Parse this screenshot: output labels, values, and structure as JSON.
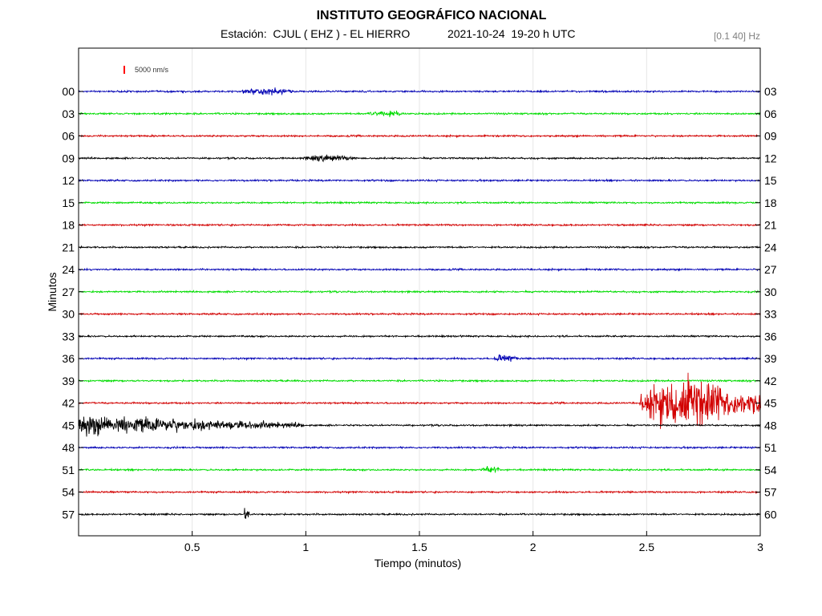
{
  "header": {
    "title": "INSTITUTO GEOGRÁFICO NACIONAL",
    "station_label": "Estación:",
    "station": "CJUL ( EHZ ) - EL HIERRO",
    "date": "2021-10-24",
    "time_range": "19-20 h UTC",
    "filter": "[0.1 40] Hz"
  },
  "scale_bar": {
    "label": "5000 nm/s",
    "color": "#ff0000"
  },
  "chart_data": {
    "type": "line",
    "xlabel": "Tiempo (minutos)",
    "ylabel": "Minutos",
    "xlim": [
      0,
      3
    ],
    "x_ticks": [
      "0.5",
      "1",
      "1.5",
      "2",
      "2.5",
      "3"
    ],
    "grid": "vertical",
    "trace_colors": [
      "#0000b4",
      "#00dc00",
      "#d20000",
      "#000000"
    ],
    "left_labels": [
      "00",
      "03",
      "06",
      "09",
      "12",
      "15",
      "18",
      "21",
      "24",
      "27",
      "30",
      "33",
      "36",
      "39",
      "42",
      "45",
      "48",
      "51",
      "54",
      "57"
    ],
    "right_labels": [
      "03",
      "06",
      "09",
      "12",
      "15",
      "18",
      "21",
      "24",
      "27",
      "30",
      "33",
      "36",
      "39",
      "42",
      "45",
      "48",
      "51",
      "54",
      "57",
      "60"
    ],
    "events": [
      {
        "trace": "00",
        "x_start": 0.67,
        "x_end": 0.98,
        "amplitude": "small"
      },
      {
        "trace": "03",
        "x_start": 1.25,
        "x_end": 1.45,
        "amplitude": "small"
      },
      {
        "trace": "09",
        "x_start": 0.95,
        "x_end": 1.25,
        "amplitude": "small"
      },
      {
        "trace": "36",
        "x_start": 1.8,
        "x_end": 1.95,
        "amplitude": "small"
      },
      {
        "trace": "42",
        "x_start": 2.47,
        "x_end": 3.0,
        "amplitude": "large"
      },
      {
        "trace": "45",
        "x_start": 0.0,
        "x_end": 0.98,
        "amplitude": "medium"
      },
      {
        "trace": "51",
        "x_start": 1.75,
        "x_end": 1.88,
        "amplitude": "small"
      },
      {
        "trace": "57",
        "x_start": 0.73,
        "x_end": 0.74,
        "amplitude": "spike"
      }
    ]
  }
}
